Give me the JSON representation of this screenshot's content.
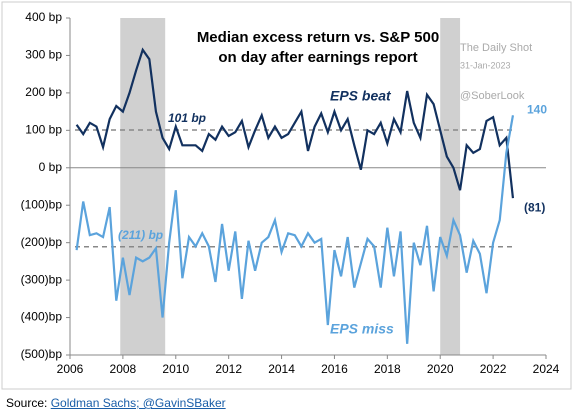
{
  "chart_data": {
    "type": "line",
    "title_lines": [
      "Median excess return vs. S&P 500",
      "on day after earnings report"
    ],
    "watermark": [
      "The Daily Shot",
      "31-Jan-2023",
      "@SoberLook"
    ],
    "xlim": [
      2006,
      2024
    ],
    "xticks": [
      2006,
      2008,
      2010,
      2012,
      2014,
      2016,
      2018,
      2020,
      2022,
      2024
    ],
    "ylim": [
      -500,
      400
    ],
    "yticks": [
      {
        "value": 400,
        "label": "400 bp"
      },
      {
        "value": 300,
        "label": "300 bp"
      },
      {
        "value": 200,
        "label": "200 bp"
      },
      {
        "value": 100,
        "label": "100 bp"
      },
      {
        "value": 0,
        "label": "0 bp"
      },
      {
        "value": -100,
        "label": "(100)bp"
      },
      {
        "value": -200,
        "label": "(200)bp"
      },
      {
        "value": -300,
        "label": "(300)bp"
      },
      {
        "value": -400,
        "label": "(400)bp"
      },
      {
        "value": -500,
        "label": "(500)bp"
      }
    ],
    "shaded_regions": [
      [
        2007.9,
        2009.6
      ],
      [
        2020,
        2020.75
      ]
    ],
    "reference_lines": [
      {
        "value": 101,
        "label": "101 bp"
      },
      {
        "value": -211,
        "label": "(211) bp"
      }
    ],
    "x": [
      2006.25,
      2006.5,
      2006.75,
      2007,
      2007.25,
      2007.5,
      2007.75,
      2008,
      2008.25,
      2008.5,
      2008.75,
      2009,
      2009.25,
      2009.5,
      2009.75,
      2010,
      2010.25,
      2010.5,
      2010.75,
      2011,
      2011.25,
      2011.5,
      2011.75,
      2012,
      2012.25,
      2012.5,
      2012.75,
      2013,
      2013.25,
      2013.5,
      2013.75,
      2014,
      2014.25,
      2014.5,
      2014.75,
      2015,
      2015.25,
      2015.5,
      2015.75,
      2016,
      2016.25,
      2016.5,
      2016.75,
      2017,
      2017.25,
      2017.5,
      2017.75,
      2018,
      2018.25,
      2018.5,
      2018.75,
      2019,
      2019.25,
      2019.5,
      2019.75,
      2020,
      2020.25,
      2020.5,
      2020.75,
      2021,
      2021.25,
      2021.5,
      2021.75,
      2022,
      2022.25,
      2022.5,
      2022.75
    ],
    "series": [
      {
        "name": "EPS beat",
        "color": "#12315f",
        "end_label": {
          "value": -81,
          "label": "(81)"
        },
        "values": [
          115,
          90,
          120,
          110,
          55,
          130,
          165,
          150,
          200,
          260,
          315,
          290,
          150,
          80,
          50,
          110,
          60,
          60,
          60,
          45,
          90,
          75,
          110,
          85,
          95,
          125,
          55,
          100,
          140,
          80,
          110,
          80,
          90,
          120,
          150,
          45,
          110,
          145,
          95,
          150,
          100,
          130,
          60,
          -5,
          100,
          90,
          120,
          65,
          130,
          95,
          205,
          120,
          80,
          195,
          170,
          100,
          30,
          0,
          -60,
          60,
          40,
          50,
          125,
          135,
          60,
          80,
          -81
        ]
      },
      {
        "name": "EPS miss",
        "color": "#5ba3dc",
        "end_label": 140,
        "values": [
          -220,
          -90,
          -180,
          -175,
          -185,
          -105,
          -355,
          -240,
          -340,
          -240,
          -250,
          -240,
          -215,
          -400,
          -200,
          -60,
          -295,
          -185,
          -210,
          -175,
          -210,
          -305,
          -150,
          -275,
          -170,
          -350,
          -195,
          -275,
          -200,
          -185,
          -140,
          -225,
          -175,
          -180,
          -210,
          -175,
          -200,
          -190,
          -420,
          -220,
          -290,
          -185,
          -320,
          -255,
          -190,
          -210,
          -320,
          -160,
          -290,
          -170,
          -470,
          -200,
          -260,
          -155,
          -330,
          -185,
          -235,
          -140,
          -180,
          -280,
          -195,
          -230,
          -335,
          -200,
          -140,
          40,
          140
        ]
      }
    ],
    "source": {
      "prefix": "Source:",
      "link": "Goldman Sachs; @GavinSBaker"
    }
  }
}
